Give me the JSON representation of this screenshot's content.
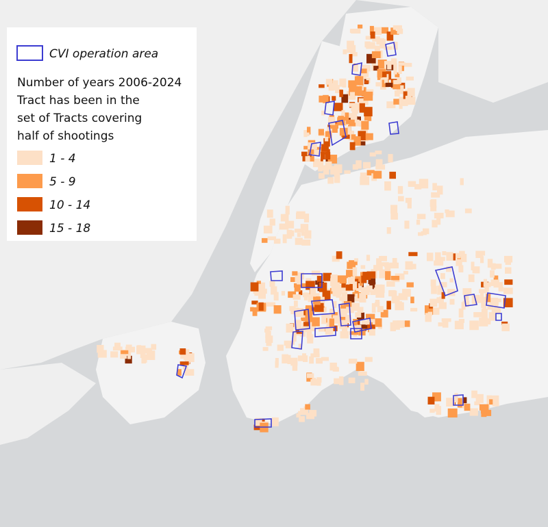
{
  "legend": {
    "cvi_label": "CVI operation area",
    "cvi_color": "#3b3bd1",
    "title_lines": [
      "Number of years 2006-2024",
      "Tract has been in the",
      "set of Tracts covering",
      "half of shootings"
    ],
    "items": [
      {
        "label": "1 - 4",
        "color": "#fde0c6"
      },
      {
        "label": "5 - 9",
        "color": "#fd9b4c"
      },
      {
        "label": "10 - 14",
        "color": "#d75203"
      },
      {
        "label": "15 - 18",
        "color": "#8a2c05"
      }
    ]
  }
}
